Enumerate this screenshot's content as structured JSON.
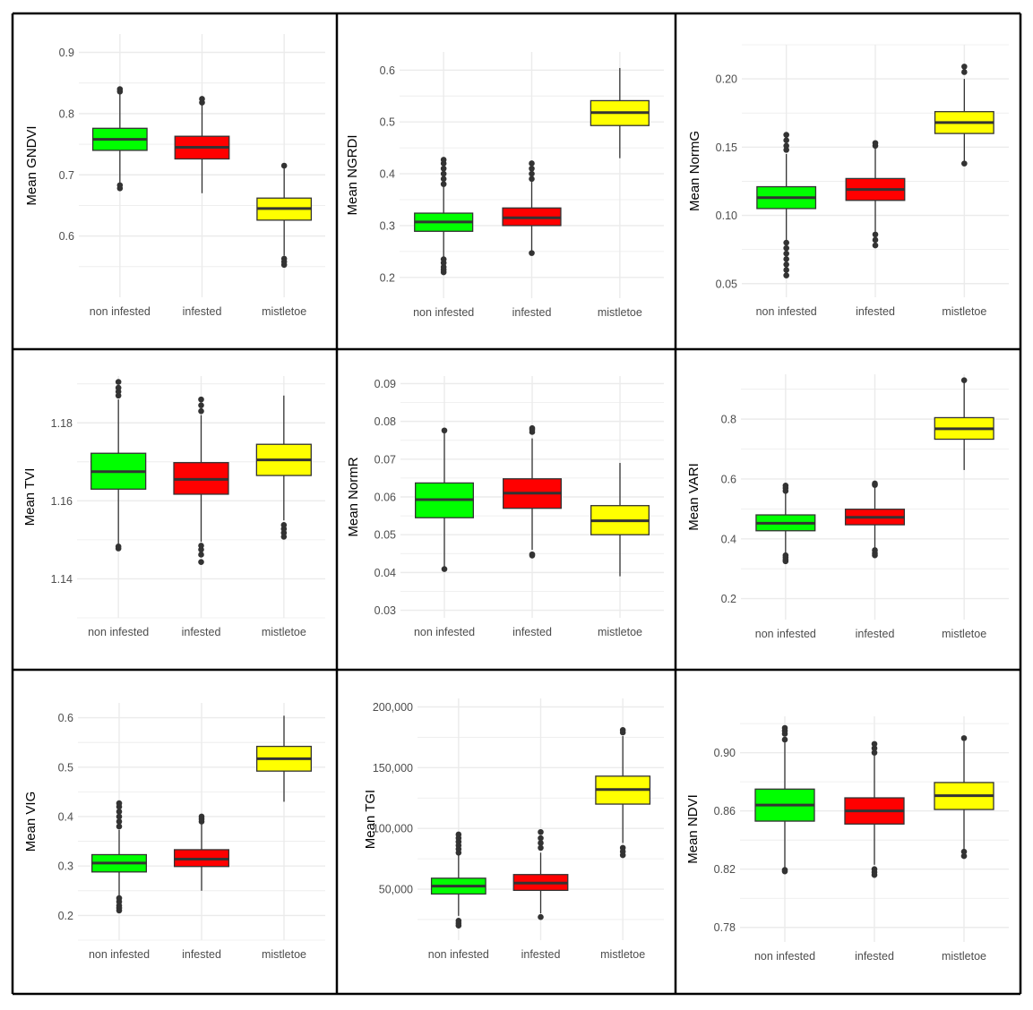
{
  "chart_data": [
    {
      "type": "box",
      "ylabel": "Mean GNDVI",
      "categories": [
        "non infested",
        "infested",
        "mistletoe"
      ],
      "y_ticks": [
        "0.6",
        "0.7",
        "0.8",
        "0.9"
      ],
      "y_tick_values": [
        0.6,
        0.7,
        0.8,
        0.9
      ],
      "ylim": [
        0.5,
        0.93
      ],
      "boxes": [
        {
          "category": "non infested",
          "whisker_low": 0.68,
          "q1": 0.74,
          "median": 0.758,
          "q3": 0.776,
          "whisker_high": 0.834,
          "outliers": [
            0.678,
            0.683,
            0.836,
            0.84
          ]
        },
        {
          "category": "infested",
          "whisker_low": 0.67,
          "q1": 0.726,
          "median": 0.745,
          "q3": 0.763,
          "whisker_high": 0.815,
          "outliers": [
            0.818,
            0.824
          ]
        },
        {
          "category": "mistletoe",
          "whisker_low": 0.568,
          "q1": 0.626,
          "median": 0.645,
          "q3": 0.662,
          "whisker_high": 0.714,
          "outliers": [
            0.715,
            0.553,
            0.558,
            0.563
          ]
        }
      ]
    },
    {
      "type": "box",
      "ylabel": "Mean NGRDI",
      "categories": [
        "non infested",
        "infested",
        "mistletoe"
      ],
      "y_ticks": [
        "0.2",
        "0.3",
        "0.4",
        "0.5",
        "0.6"
      ],
      "y_tick_values": [
        0.2,
        0.3,
        0.4,
        0.5,
        0.6
      ],
      "ylim": [
        0.16,
        0.635
      ],
      "boxes": [
        {
          "category": "non infested",
          "whisker_low": 0.24,
          "q1": 0.289,
          "median": 0.307,
          "q3": 0.324,
          "whisker_high": 0.375,
          "outliers": [
            0.21,
            0.215,
            0.22,
            0.228,
            0.235,
            0.38,
            0.39,
            0.4,
            0.41,
            0.42,
            0.427
          ]
        },
        {
          "category": "infested",
          "whisker_low": 0.248,
          "q1": 0.3,
          "median": 0.315,
          "q3": 0.334,
          "whisker_high": 0.385,
          "outliers": [
            0.247,
            0.39,
            0.4,
            0.41,
            0.42
          ]
        },
        {
          "category": "mistletoe",
          "whisker_low": 0.43,
          "q1": 0.493,
          "median": 0.518,
          "q3": 0.541,
          "whisker_high": 0.604,
          "outliers": []
        }
      ]
    },
    {
      "type": "box",
      "ylabel": "Mean NormG",
      "categories": [
        "non infested",
        "infested",
        "mistletoe"
      ],
      "y_ticks": [
        "0.05",
        "0.10",
        "0.15",
        "0.20"
      ],
      "y_tick_values": [
        0.05,
        0.1,
        0.15,
        0.2
      ],
      "ylim": [
        0.04,
        0.225
      ],
      "boxes": [
        {
          "category": "non infested",
          "whisker_low": 0.082,
          "q1": 0.105,
          "median": 0.113,
          "q3": 0.121,
          "whisker_high": 0.145,
          "outliers": [
            0.056,
            0.06,
            0.064,
            0.068,
            0.072,
            0.076,
            0.08,
            0.148,
            0.151,
            0.155,
            0.159
          ]
        },
        {
          "category": "infested",
          "whisker_low": 0.088,
          "q1": 0.111,
          "median": 0.119,
          "q3": 0.127,
          "whisker_high": 0.149,
          "outliers": [
            0.078,
            0.082,
            0.086,
            0.151,
            0.153
          ]
        },
        {
          "category": "mistletoe",
          "whisker_low": 0.139,
          "q1": 0.16,
          "median": 0.168,
          "q3": 0.176,
          "whisker_high": 0.2,
          "outliers": [
            0.138,
            0.205,
            0.209
          ]
        }
      ]
    },
    {
      "type": "box",
      "ylabel": "Mean TVI",
      "categories": [
        "non infested",
        "infested",
        "mistletoe"
      ],
      "y_ticks": [
        "1.14",
        "1.16",
        "1.18"
      ],
      "y_tick_values": [
        1.14,
        1.16,
        1.18
      ],
      "ylim": [
        1.13,
        1.192
      ],
      "boxes": [
        {
          "category": "non infested",
          "whisker_low": 1.149,
          "q1": 1.163,
          "median": 1.1675,
          "q3": 1.1722,
          "whisker_high": 1.186,
          "outliers": [
            1.1478,
            1.1483,
            1.187,
            1.188,
            1.189,
            1.1905
          ]
        },
        {
          "category": "infested",
          "whisker_low": 1.1495,
          "q1": 1.1617,
          "median": 1.1655,
          "q3": 1.1698,
          "whisker_high": 1.182,
          "outliers": [
            1.1443,
            1.1462,
            1.1475,
            1.1485,
            1.183,
            1.1845,
            1.186
          ]
        },
        {
          "category": "mistletoe",
          "whisker_low": 1.155,
          "q1": 1.1665,
          "median": 1.1705,
          "q3": 1.1745,
          "whisker_high": 1.187,
          "outliers": [
            1.1508,
            1.1518,
            1.1528,
            1.1538
          ]
        }
      ]
    },
    {
      "type": "box",
      "ylabel": "Mean NormR",
      "categories": [
        "non infested",
        "infested",
        "mistletoe"
      ],
      "y_ticks": [
        "0.03",
        "0.04",
        "0.05",
        "0.06",
        "0.07",
        "0.08",
        "0.09"
      ],
      "y_tick_values": [
        0.03,
        0.04,
        0.05,
        0.06,
        0.07,
        0.08,
        0.09
      ],
      "ylim": [
        0.028,
        0.092
      ],
      "boxes": [
        {
          "category": "non infested",
          "whisker_low": 0.041,
          "q1": 0.0545,
          "median": 0.0593,
          "q3": 0.0637,
          "whisker_high": 0.0775,
          "outliers": [
            0.0409,
            0.0776
          ]
        },
        {
          "category": "infested",
          "whisker_low": 0.046,
          "q1": 0.057,
          "median": 0.061,
          "q3": 0.0648,
          "whisker_high": 0.0755,
          "outliers": [
            0.0445,
            0.0448,
            0.0772,
            0.0778,
            0.0782
          ]
        },
        {
          "category": "mistletoe",
          "whisker_low": 0.039,
          "q1": 0.05,
          "median": 0.0537,
          "q3": 0.0577,
          "whisker_high": 0.069,
          "outliers": []
        }
      ]
    },
    {
      "type": "box",
      "ylabel": "Mean VARI",
      "categories": [
        "non infested",
        "infested",
        "mistletoe"
      ],
      "y_ticks": [
        "0.2",
        "0.4",
        "0.6",
        "0.8"
      ],
      "y_tick_values": [
        0.2,
        0.4,
        0.6,
        0.8
      ],
      "ylim": [
        0.13,
        0.95
      ],
      "boxes": [
        {
          "category": "non infested",
          "whisker_low": 0.35,
          "q1": 0.427,
          "median": 0.452,
          "q3": 0.48,
          "whisker_high": 0.555,
          "outliers": [
            0.325,
            0.33,
            0.338,
            0.345,
            0.56,
            0.57,
            0.578
          ]
        },
        {
          "category": "infested",
          "whisker_low": 0.37,
          "q1": 0.447,
          "median": 0.472,
          "q3": 0.499,
          "whisker_high": 0.575,
          "outliers": [
            0.345,
            0.352,
            0.362,
            0.58,
            0.585
          ]
        },
        {
          "category": "mistletoe",
          "whisker_low": 0.63,
          "q1": 0.733,
          "median": 0.768,
          "q3": 0.805,
          "whisker_high": 0.925,
          "outliers": [
            0.93
          ]
        }
      ]
    },
    {
      "type": "box",
      "ylabel": "Mean VIG",
      "categories": [
        "non infested",
        "infested",
        "mistletoe"
      ],
      "y_ticks": [
        "0.2",
        "0.3",
        "0.4",
        "0.5",
        "0.6"
      ],
      "y_tick_values": [
        0.2,
        0.3,
        0.4,
        0.5,
        0.6
      ],
      "ylim": [
        0.15,
        0.63
      ],
      "boxes": [
        {
          "category": "non infested",
          "whisker_low": 0.24,
          "q1": 0.288,
          "median": 0.306,
          "q3": 0.323,
          "whisker_high": 0.373,
          "outliers": [
            0.21,
            0.215,
            0.22,
            0.228,
            0.235,
            0.38,
            0.39,
            0.4,
            0.41,
            0.42,
            0.427
          ]
        },
        {
          "category": "infested",
          "whisker_low": 0.25,
          "q1": 0.299,
          "median": 0.314,
          "q3": 0.333,
          "whisker_high": 0.385,
          "outliers": [
            0.39,
            0.395,
            0.4
          ]
        },
        {
          "category": "mistletoe",
          "whisker_low": 0.43,
          "q1": 0.492,
          "median": 0.517,
          "q3": 0.542,
          "whisker_high": 0.604,
          "outliers": []
        }
      ]
    },
    {
      "type": "box",
      "ylabel": "Mean TGI",
      "categories": [
        "non infested",
        "infested",
        "mistletoe"
      ],
      "y_ticks": [
        "50,000",
        "100,000",
        "150,000",
        "200,000"
      ],
      "y_tick_values": [
        50000,
        100000,
        150000,
        200000
      ],
      "ylim": [
        8000,
        207000
      ],
      "boxes": [
        {
          "category": "non infested",
          "whisker_low": 28000,
          "q1": 46000,
          "median": 52500,
          "q3": 59000,
          "whisker_high": 78000,
          "outliers": [
            20000,
            22000,
            24000,
            80000,
            83000,
            86000,
            89000,
            92000,
            95000
          ]
        },
        {
          "category": "infested",
          "whisker_low": 30000,
          "q1": 49000,
          "median": 55000,
          "q3": 62000,
          "whisker_high": 80000,
          "outliers": [
            27000,
            84000,
            88000,
            92000,
            97000
          ]
        },
        {
          "category": "mistletoe",
          "whisker_low": 88000,
          "q1": 120000,
          "median": 132000,
          "q3": 143000,
          "whisker_high": 176000,
          "outliers": [
            78000,
            81000,
            84000,
            179000,
            181000
          ]
        }
      ]
    },
    {
      "type": "box",
      "ylabel": "Mean NDVI",
      "categories": [
        "non infested",
        "infested",
        "mistletoe"
      ],
      "y_ticks": [
        "0.78",
        "0.82",
        "0.86",
        "0.90"
      ],
      "y_tick_values": [
        0.78,
        0.82,
        0.86,
        0.9
      ],
      "ylim": [
        0.77,
        0.925
      ],
      "boxes": [
        {
          "category": "non infested",
          "whisker_low": 0.82,
          "q1": 0.853,
          "median": 0.864,
          "q3": 0.875,
          "whisker_high": 0.907,
          "outliers": [
            0.8185,
            0.8195,
            0.909,
            0.913,
            0.915,
            0.917
          ]
        },
        {
          "category": "infested",
          "whisker_low": 0.823,
          "q1": 0.851,
          "median": 0.86,
          "q3": 0.869,
          "whisker_high": 0.898,
          "outliers": [
            0.816,
            0.818,
            0.82,
            0.9,
            0.903,
            0.906
          ]
        },
        {
          "category": "mistletoe",
          "whisker_low": 0.834,
          "q1": 0.861,
          "median": 0.8705,
          "q3": 0.8795,
          "whisker_high": 0.908,
          "outliers": [
            0.829,
            0.832,
            0.91
          ]
        }
      ]
    }
  ],
  "colors": {
    "non infested": "#00ff00",
    "infested": "#ff0000",
    "mistletoe": "#ffff00",
    "grid": "#ebebeb",
    "box_outline": "#333333",
    "panel_border": "#000000"
  }
}
